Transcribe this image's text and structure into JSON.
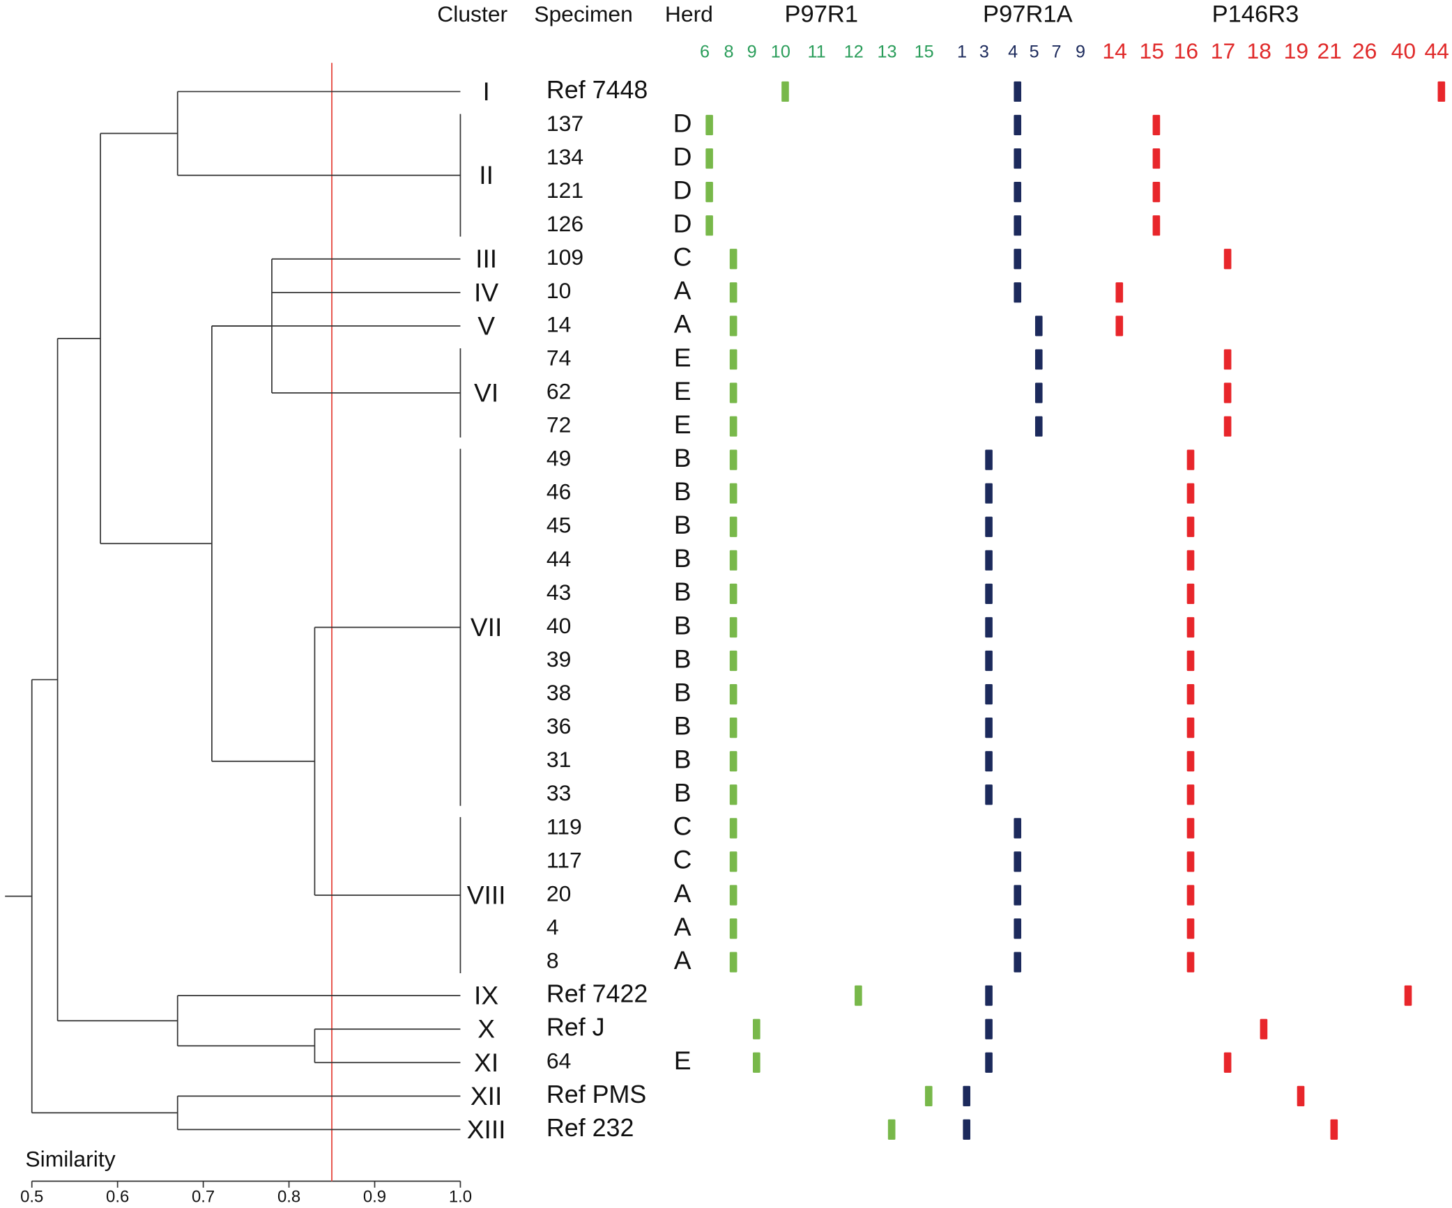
{
  "chart_data": {
    "type": "dendrogram",
    "headers": {
      "cluster": "Cluster",
      "specimen": "Specimen",
      "herd": "Herd"
    },
    "axis_label": "Similarity",
    "xlim": [
      0.5,
      1.0
    ],
    "xticks": [
      0.5,
      0.6,
      0.7,
      0.8,
      0.9,
      {
        "value": 1.0,
        "label": "1.0"
      }
    ],
    "cutoff": 0.85,
    "cutoff_color": "#e8574f",
    "markers": [
      {
        "name": "P97R1",
        "color": "#2a9d5a",
        "band_color": "#78b84a",
        "alleles": [
          6,
          8,
          9,
          10,
          11,
          12,
          13,
          15
        ]
      },
      {
        "name": "P97R1A",
        "color": "#1c2a5c",
        "band_color": "#1c2a5c",
        "alleles": [
          1,
          3,
          4,
          5,
          7,
          9
        ]
      },
      {
        "name": "P146R3",
        "color": "#e02a2a",
        "band_color": "#e8262b",
        "alleles": [
          14,
          15,
          16,
          17,
          18,
          19,
          21,
          26,
          40,
          44
        ]
      }
    ],
    "rows": [
      {
        "specimen": "Ref 7448",
        "alleles": [
          10,
          4,
          44
        ]
      },
      {
        "specimen": "137",
        "herd": "D",
        "alleles": [
          6,
          4,
          15
        ]
      },
      {
        "specimen": "134",
        "herd": "D",
        "alleles": [
          6,
          4,
          15
        ]
      },
      {
        "specimen": "121",
        "herd": "D",
        "alleles": [
          6,
          4,
          15
        ]
      },
      {
        "specimen": "126",
        "herd": "D",
        "alleles": [
          6,
          4,
          15
        ]
      },
      {
        "specimen": "109",
        "herd": "C",
        "alleles": [
          8,
          4,
          17
        ]
      },
      {
        "specimen": "10",
        "herd": "A",
        "alleles": [
          8,
          4,
          14
        ]
      },
      {
        "specimen": "14",
        "herd": "A",
        "alleles": [
          8,
          5,
          14
        ]
      },
      {
        "specimen": "74",
        "herd": "E",
        "alleles": [
          8,
          5,
          17
        ]
      },
      {
        "specimen": "62",
        "herd": "E",
        "alleles": [
          8,
          5,
          17
        ]
      },
      {
        "specimen": "72",
        "herd": "E",
        "alleles": [
          8,
          5,
          17
        ]
      },
      {
        "specimen": "49",
        "herd": "B",
        "alleles": [
          8,
          3,
          16
        ]
      },
      {
        "specimen": "46",
        "herd": "B",
        "alleles": [
          8,
          3,
          16
        ]
      },
      {
        "specimen": "45",
        "herd": "B",
        "alleles": [
          8,
          3,
          16
        ]
      },
      {
        "specimen": "44",
        "herd": "B",
        "alleles": [
          8,
          3,
          16
        ]
      },
      {
        "specimen": "43",
        "herd": "B",
        "alleles": [
          8,
          3,
          16
        ]
      },
      {
        "specimen": "40",
        "herd": "B",
        "alleles": [
          8,
          3,
          16
        ]
      },
      {
        "specimen": "39",
        "herd": "B",
        "alleles": [
          8,
          3,
          16
        ]
      },
      {
        "specimen": "38",
        "herd": "B",
        "alleles": [
          8,
          3,
          16
        ]
      },
      {
        "specimen": "36",
        "herd": "B",
        "alleles": [
          8,
          3,
          16
        ]
      },
      {
        "specimen": "31",
        "herd": "B",
        "alleles": [
          8,
          3,
          16
        ]
      },
      {
        "specimen": "33",
        "herd": "B",
        "alleles": [
          8,
          3,
          16
        ]
      },
      {
        "specimen": "119",
        "herd": "C",
        "alleles": [
          8,
          4,
          16
        ]
      },
      {
        "specimen": "117",
        "herd": "C",
        "alleles": [
          8,
          4,
          16
        ]
      },
      {
        "specimen": "20",
        "herd": "A",
        "alleles": [
          8,
          4,
          16
        ]
      },
      {
        "specimen": "4",
        "herd": "A",
        "alleles": [
          8,
          4,
          16
        ]
      },
      {
        "specimen": "8",
        "herd": "A",
        "alleles": [
          8,
          4,
          16
        ]
      },
      {
        "specimen": "Ref 7422",
        "alleles": [
          12,
          3,
          40
        ]
      },
      {
        "specimen": "Ref J",
        "alleles": [
          9,
          3,
          18
        ]
      },
      {
        "specimen": "64",
        "herd": "E",
        "alleles": [
          9,
          3,
          17
        ]
      },
      {
        "specimen": "Ref PMS",
        "alleles": [
          15,
          1,
          19
        ]
      },
      {
        "specimen": "Ref 232",
        "alleles": [
          13,
          1,
          21
        ]
      }
    ],
    "clusters": [
      {
        "label": "I",
        "rows": [
          0,
          0
        ],
        "similarity": 1.0
      },
      {
        "label": "II",
        "rows": [
          1,
          4
        ],
        "similarity": 1.0
      },
      {
        "label": "III",
        "rows": [
          5,
          5
        ],
        "similarity": 1.0
      },
      {
        "label": "IV",
        "rows": [
          6,
          6
        ],
        "similarity": 1.0
      },
      {
        "label": "V",
        "rows": [
          7,
          7
        ],
        "similarity": 1.0
      },
      {
        "label": "VI",
        "rows": [
          8,
          10
        ],
        "similarity": 1.0
      },
      {
        "label": "VII",
        "rows": [
          11,
          21
        ],
        "similarity": 1.0
      },
      {
        "label": "VIII",
        "rows": [
          22,
          26
        ],
        "similarity": 1.0
      },
      {
        "label": "IX",
        "rows": [
          27,
          27
        ],
        "similarity": 1.0
      },
      {
        "label": "X",
        "rows": [
          28,
          28
        ],
        "similarity": 1.0
      },
      {
        "label": "XI",
        "rows": [
          29,
          29
        ],
        "similarity": 1.0
      },
      {
        "label": "XII",
        "rows": [
          30,
          30
        ],
        "similarity": 1.0
      },
      {
        "label": "XIII",
        "rows": [
          31,
          31
        ],
        "similarity": 1.0
      }
    ],
    "tree": {
      "similarity": 0.5,
      "children": [
        {
          "similarity": 0.53,
          "children": [
            {
              "similarity": 0.58,
              "children": [
                {
                  "similarity": 0.67,
                  "children": [
                    "I",
                    "II"
                  ]
                },
                {
                  "similarity": 0.71,
                  "children": [
                    {
                      "similarity": 0.78,
                      "children": [
                        "III",
                        "IV",
                        "VI"
                      ]
                    },
                    "V",
                    {
                      "similarity": 0.83,
                      "children": [
                        "VII",
                        "VIII"
                      ]
                    }
                  ]
                }
              ]
            },
            {
              "similarity": 0.67,
              "children": [
                "IX",
                {
                  "similarity": 0.83,
                  "children": [
                    "X",
                    "XI"
                  ]
                }
              ]
            }
          ]
        },
        {
          "similarity": 0.67,
          "children": [
            "XII",
            "XIII"
          ]
        }
      ]
    }
  }
}
